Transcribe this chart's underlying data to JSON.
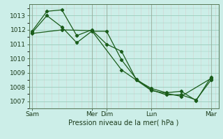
{
  "background_color": "#cceee8",
  "grid_color_h": "#99ccbb",
  "grid_color_v_minor": "#ddbbbb",
  "grid_color_v_major": "#99aa99",
  "line_color": "#1a5c1a",
  "marker_color": "#1a5c1a",
  "xlabel_text": "Pression niveau de la mer( hPa )",
  "x_tick_labels": [
    "Sam",
    "Mer",
    "Dim",
    "Lun",
    "Mar"
  ],
  "x_tick_positions": [
    0,
    4,
    5,
    8,
    12
  ],
  "xlim": [
    -0.2,
    12.5
  ],
  "ylim": [
    1006.5,
    1013.8
  ],
  "yticks": [
    1007,
    1008,
    1009,
    1010,
    1011,
    1012,
    1013
  ],
  "series1_x": [
    0,
    1,
    2,
    3,
    4,
    5,
    6,
    7,
    8,
    9,
    10,
    11,
    12
  ],
  "series1_y": [
    1011.8,
    1013.0,
    1012.2,
    1011.1,
    1011.9,
    1011.9,
    1009.9,
    1008.55,
    1007.8,
    1007.45,
    1007.45,
    1007.1,
    1008.5
  ],
  "series2_x": [
    0,
    1,
    2,
    3,
    4,
    5,
    6,
    7,
    8,
    9,
    10,
    11,
    12
  ],
  "series2_y": [
    1011.9,
    1013.3,
    1013.4,
    1011.6,
    1012.0,
    1011.0,
    1010.5,
    1008.5,
    1007.9,
    1007.6,
    1007.7,
    1007.05,
    1008.7
  ],
  "series3_x": [
    0,
    2,
    4,
    6,
    8,
    10,
    12
  ],
  "series3_y": [
    1011.75,
    1012.0,
    1011.95,
    1009.2,
    1007.75,
    1007.35,
    1008.6
  ],
  "vlines_major_x": [
    0,
    4,
    5,
    8,
    12
  ],
  "vlines_minor_step": 0.5,
  "figsize": [
    3.2,
    2.0
  ],
  "dpi": 100
}
